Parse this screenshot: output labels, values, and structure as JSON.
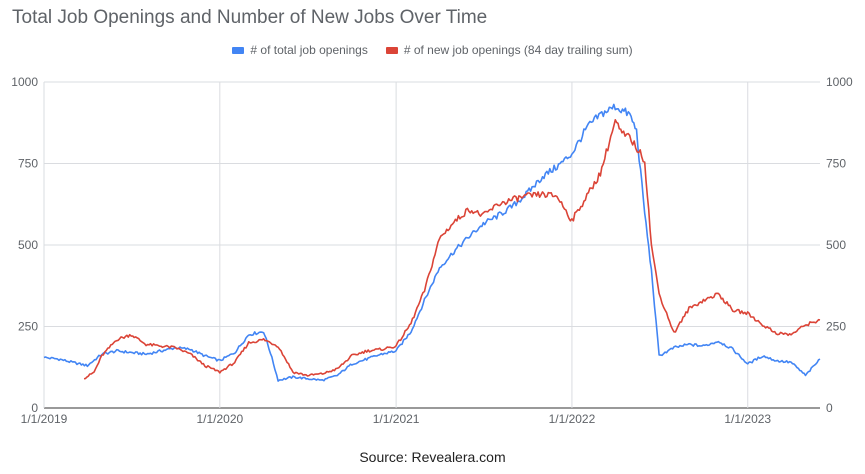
{
  "chart_data": {
    "type": "line",
    "title": "Total Job Openings and Number of New Jobs Over Time",
    "source": "Source: Revealera.com",
    "x_ticks": [
      "1/1/2019",
      "1/1/2020",
      "1/1/2021",
      "1/1/2022",
      "1/1/2023"
    ],
    "y_ticks_left": [
      "0",
      "250",
      "500",
      "750",
      "1000"
    ],
    "y_ticks_right": [
      "0",
      "250",
      "500",
      "750",
      "1000"
    ],
    "ylim": [
      0,
      1000
    ],
    "xlim": [
      "2019-01-01",
      "2023-05-31"
    ],
    "grid": true,
    "legend_position": "top",
    "series": [
      {
        "name": "# of total job openings",
        "color": "#4285f4",
        "points": [
          [
            "2019-01-01",
            155
          ],
          [
            "2019-02-01",
            150
          ],
          [
            "2019-03-01",
            140
          ],
          [
            "2019-04-01",
            130
          ],
          [
            "2019-05-01",
            165
          ],
          [
            "2019-06-01",
            175
          ],
          [
            "2019-07-01",
            170
          ],
          [
            "2019-08-01",
            165
          ],
          [
            "2019-09-01",
            175
          ],
          [
            "2019-10-01",
            185
          ],
          [
            "2019-11-01",
            180
          ],
          [
            "2019-12-01",
            160
          ],
          [
            "2020-01-01",
            145
          ],
          [
            "2020-02-01",
            170
          ],
          [
            "2020-03-01",
            225
          ],
          [
            "2020-04-01",
            235
          ],
          [
            "2020-04-15",
            170
          ],
          [
            "2020-05-01",
            85
          ],
          [
            "2020-06-01",
            95
          ],
          [
            "2020-07-01",
            90
          ],
          [
            "2020-08-01",
            85
          ],
          [
            "2020-09-01",
            100
          ],
          [
            "2020-10-01",
            135
          ],
          [
            "2020-11-01",
            150
          ],
          [
            "2020-12-01",
            165
          ],
          [
            "2021-01-01",
            175
          ],
          [
            "2021-02-01",
            235
          ],
          [
            "2021-03-01",
            330
          ],
          [
            "2021-04-01",
            430
          ],
          [
            "2021-05-01",
            480
          ],
          [
            "2021-06-01",
            525
          ],
          [
            "2021-07-01",
            565
          ],
          [
            "2021-08-01",
            590
          ],
          [
            "2021-09-01",
            620
          ],
          [
            "2021-10-01",
            660
          ],
          [
            "2021-11-01",
            710
          ],
          [
            "2021-12-01",
            740
          ],
          [
            "2022-01-01",
            780
          ],
          [
            "2022-02-01",
            860
          ],
          [
            "2022-03-01",
            900
          ],
          [
            "2022-04-01",
            925
          ],
          [
            "2022-05-01",
            900
          ],
          [
            "2022-05-15",
            850
          ],
          [
            "2022-06-01",
            600
          ],
          [
            "2022-06-15",
            420
          ],
          [
            "2022-07-01",
            160
          ],
          [
            "2022-08-01",
            185
          ],
          [
            "2022-09-01",
            195
          ],
          [
            "2022-10-01",
            190
          ],
          [
            "2022-11-01",
            205
          ],
          [
            "2022-12-01",
            180
          ],
          [
            "2023-01-01",
            135
          ],
          [
            "2023-02-01",
            160
          ],
          [
            "2023-03-01",
            145
          ],
          [
            "2023-04-01",
            140
          ],
          [
            "2023-05-01",
            100
          ],
          [
            "2023-05-31",
            150
          ]
        ]
      },
      {
        "name": "# of new job openings (84 day trailing sum)",
        "color": "#db4437",
        "points": [
          [
            "2019-03-25",
            90
          ],
          [
            "2019-04-15",
            110
          ],
          [
            "2019-05-01",
            160
          ],
          [
            "2019-06-01",
            210
          ],
          [
            "2019-07-01",
            225
          ],
          [
            "2019-08-01",
            195
          ],
          [
            "2019-09-01",
            190
          ],
          [
            "2019-10-01",
            185
          ],
          [
            "2019-11-01",
            165
          ],
          [
            "2019-12-01",
            130
          ],
          [
            "2020-01-01",
            110
          ],
          [
            "2020-02-01",
            140
          ],
          [
            "2020-03-01",
            200
          ],
          [
            "2020-04-01",
            210
          ],
          [
            "2020-05-01",
            190
          ],
          [
            "2020-06-01",
            110
          ],
          [
            "2020-07-01",
            100
          ],
          [
            "2020-08-01",
            105
          ],
          [
            "2020-09-01",
            120
          ],
          [
            "2020-10-01",
            160
          ],
          [
            "2020-11-01",
            175
          ],
          [
            "2020-12-01",
            180
          ],
          [
            "2021-01-01",
            190
          ],
          [
            "2021-02-01",
            260
          ],
          [
            "2021-03-01",
            360
          ],
          [
            "2021-04-01",
            520
          ],
          [
            "2021-05-01",
            570
          ],
          [
            "2021-06-01",
            610
          ],
          [
            "2021-07-01",
            590
          ],
          [
            "2021-08-01",
            625
          ],
          [
            "2021-09-01",
            640
          ],
          [
            "2021-10-01",
            650
          ],
          [
            "2021-11-01",
            655
          ],
          [
            "2021-12-01",
            650
          ],
          [
            "2022-01-01",
            575
          ],
          [
            "2022-02-01",
            650
          ],
          [
            "2022-03-01",
            720
          ],
          [
            "2022-04-01",
            880
          ],
          [
            "2022-04-15",
            840
          ],
          [
            "2022-05-01",
            830
          ],
          [
            "2022-06-01",
            760
          ],
          [
            "2022-06-15",
            500
          ],
          [
            "2022-07-01",
            350
          ],
          [
            "2022-08-01",
            230
          ],
          [
            "2022-09-01",
            305
          ],
          [
            "2022-10-01",
            330
          ],
          [
            "2022-11-01",
            350
          ],
          [
            "2022-12-01",
            300
          ],
          [
            "2023-01-01",
            290
          ],
          [
            "2023-02-01",
            255
          ],
          [
            "2023-03-01",
            230
          ],
          [
            "2023-04-01",
            225
          ],
          [
            "2023-05-01",
            255
          ],
          [
            "2023-05-31",
            270
          ]
        ]
      }
    ]
  }
}
